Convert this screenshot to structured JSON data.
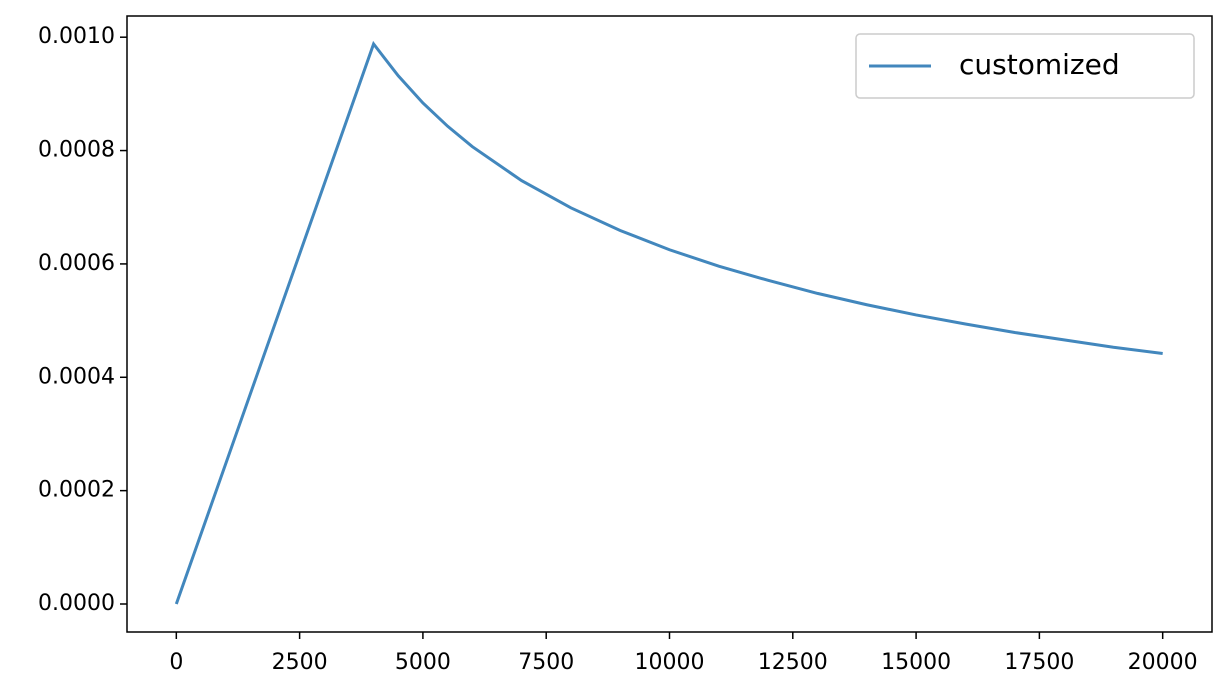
{
  "chart_data": {
    "type": "line",
    "x": [
      0,
      4000,
      4500,
      5000,
      5500,
      6000,
      7000,
      8000,
      9000,
      10000,
      11000,
      12000,
      13000,
      14000,
      15000,
      16000,
      17000,
      18000,
      19000,
      20000
    ],
    "series": [
      {
        "name": "customized",
        "color": "#4287bd",
        "values": [
          0,
          0.000988,
          0.000932,
          0.000884,
          0.000843,
          0.000807,
          0.000747,
          0.000699,
          0.000659,
          0.000625,
          0.000596,
          0.000571,
          0.000548,
          0.000528,
          0.00051,
          0.000494,
          0.000479,
          0.000466,
          0.000453,
          0.000442
        ]
      }
    ],
    "xlim": [
      -1000,
      21000
    ],
    "ylim": [
      -4.94e-05,
      0.0010374
    ],
    "xticks": [
      0,
      2500,
      5000,
      7500,
      10000,
      12500,
      15000,
      17500,
      20000
    ],
    "yticks": [
      {
        "value": 0,
        "label": "0.0000"
      },
      {
        "value": 0.0002,
        "label": "0.0002"
      },
      {
        "value": 0.0004,
        "label": "0.0004"
      },
      {
        "value": 0.0006,
        "label": "0.0006"
      },
      {
        "value": 0.0008,
        "label": "0.0008"
      },
      {
        "value": 0.001,
        "label": "0.0010"
      }
    ],
    "legend": "upper right"
  }
}
